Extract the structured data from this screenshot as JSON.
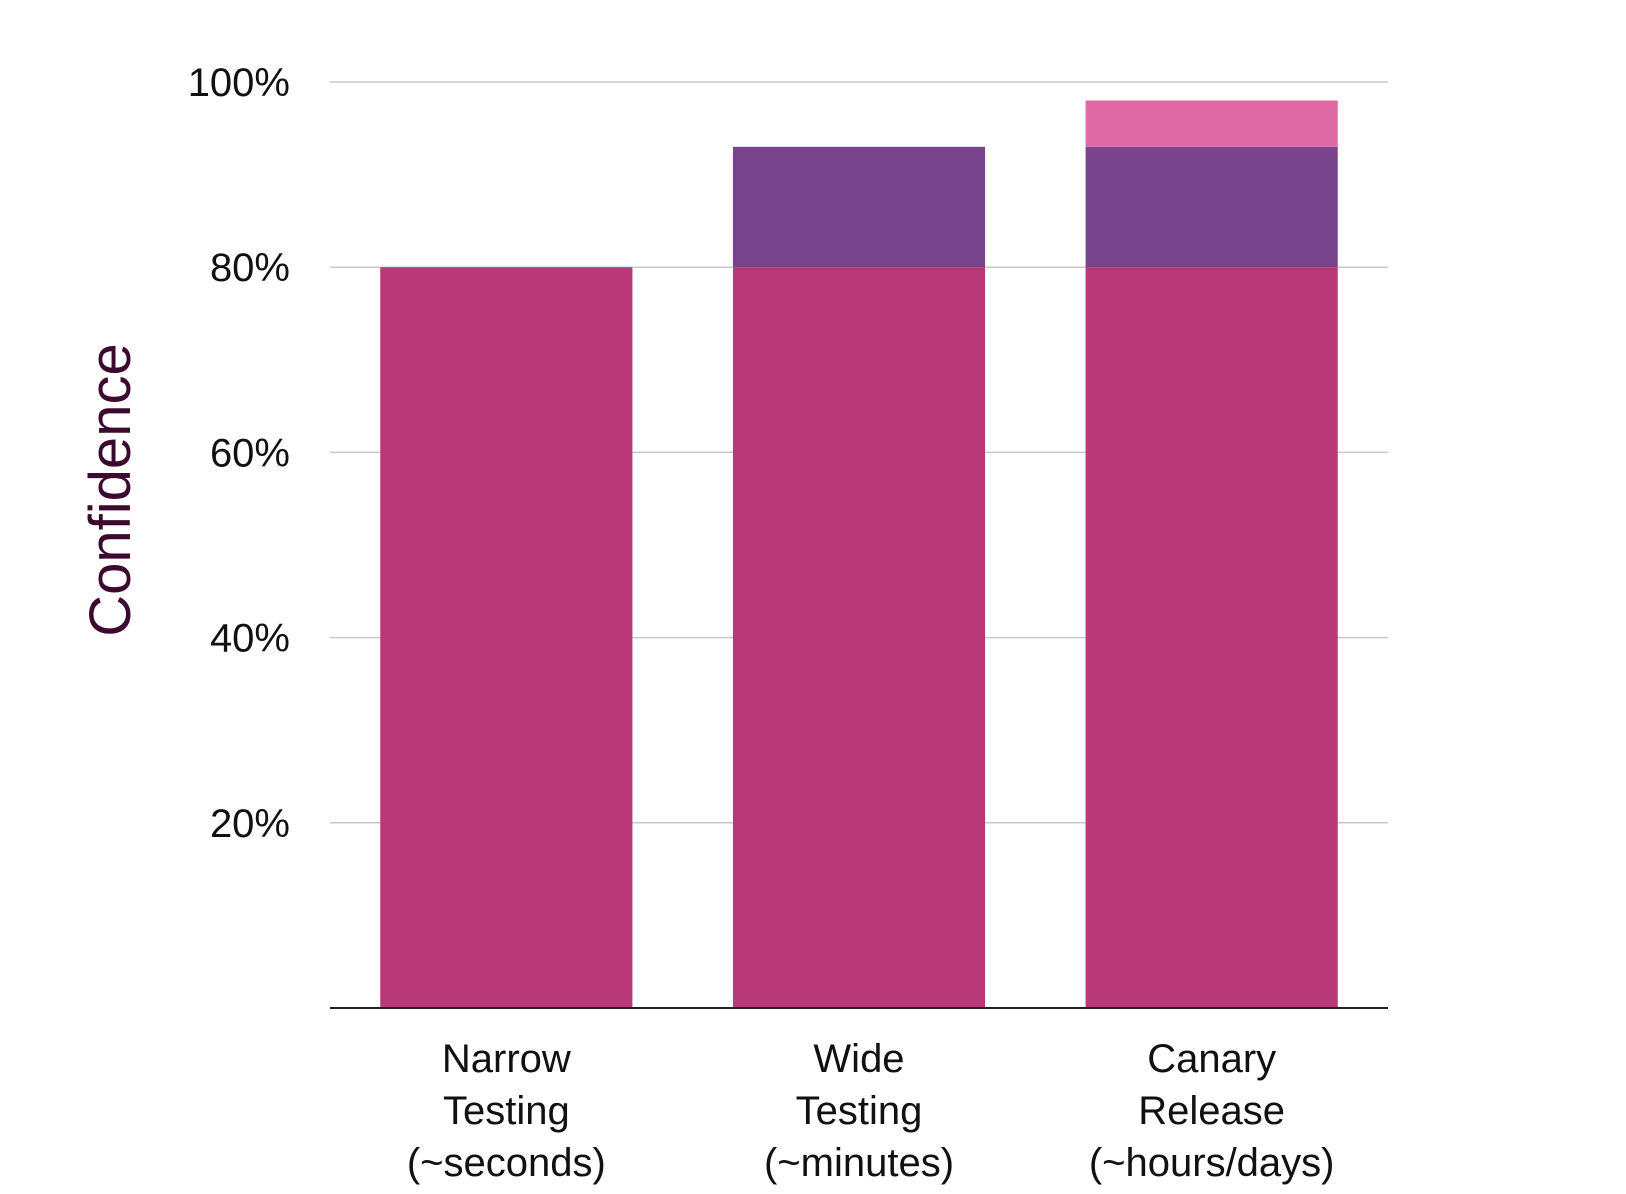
{
  "chart_data": {
    "type": "bar",
    "stacked": true,
    "title": "",
    "xlabel": "",
    "ylabel": "Confidence",
    "ylim": [
      0,
      100
    ],
    "y_ticks": [
      20,
      40,
      60,
      80,
      100
    ],
    "y_tick_labels": [
      "20%",
      "40%",
      "60%",
      "80%",
      "100%"
    ],
    "grid": true,
    "legend": "none",
    "categories": [
      [
        "Narrow",
        "Testing",
        "(~seconds)"
      ],
      [
        "Wide",
        "Testing",
        "(~minutes)"
      ],
      [
        "Canary",
        "Release",
        "(~hours/days)"
      ]
    ],
    "series": [
      {
        "values": [
          80,
          80,
          80
        ],
        "color": "#b93976"
      },
      {
        "values": [
          0,
          13,
          13
        ],
        "color": "#78448b"
      },
      {
        "values": [
          0,
          0,
          5
        ],
        "color": "#de69a5"
      }
    ]
  },
  "colors": {
    "grid": "#c8c8c8",
    "axis": "#222222",
    "ylabel": "#3b0a2e"
  }
}
